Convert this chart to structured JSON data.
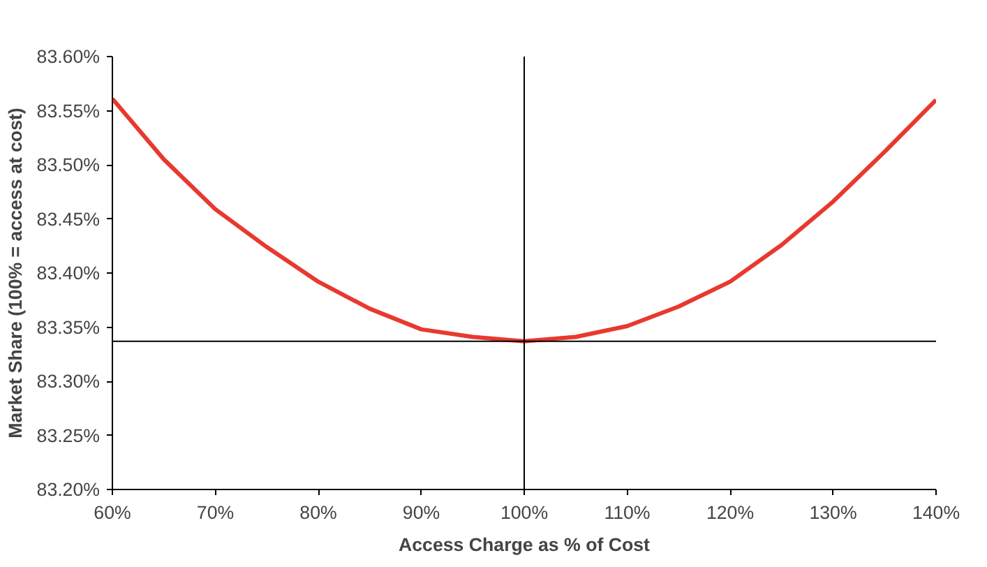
{
  "chart_data": {
    "type": "line",
    "xlabel": "Access Charge as % of Cost",
    "ylabel": "Market Share (100% = access at cost)",
    "x": [
      60,
      65,
      70,
      75,
      80,
      85,
      90,
      95,
      100,
      105,
      110,
      115,
      120,
      125,
      130,
      135,
      140
    ],
    "series": [
      {
        "color": "#e8392f",
        "values": [
          83.561,
          83.505,
          83.459,
          83.424,
          83.392,
          83.367,
          83.348,
          83.341,
          83.337,
          83.341,
          83.351,
          83.369,
          83.392,
          83.426,
          83.466,
          83.512,
          83.56
        ]
      }
    ],
    "xlim": [
      60,
      140
    ],
    "ylim": [
      83.2,
      83.6
    ],
    "xticks": [
      {
        "value": 60,
        "label": "60%"
      },
      {
        "value": 70,
        "label": "70%"
      },
      {
        "value": 80,
        "label": "80%"
      },
      {
        "value": 90,
        "label": "90%"
      },
      {
        "value": 100,
        "label": "100%"
      },
      {
        "value": 110,
        "label": "110%"
      },
      {
        "value": 120,
        "label": "120%"
      },
      {
        "value": 130,
        "label": "130%"
      },
      {
        "value": 140,
        "label": "140%"
      }
    ],
    "yticks": [
      {
        "value": 83.2,
        "label": "83.20%"
      },
      {
        "value": 83.25,
        "label": "83.25%"
      },
      {
        "value": 83.3,
        "label": "83.30%"
      },
      {
        "value": 83.35,
        "label": "83.35%"
      },
      {
        "value": 83.4,
        "label": "83.40%"
      },
      {
        "value": 83.45,
        "label": "83.45%"
      },
      {
        "value": 83.5,
        "label": "83.50%"
      },
      {
        "value": 83.55,
        "label": "83.55%"
      },
      {
        "value": 83.6,
        "label": "83.60%"
      }
    ],
    "ref_lines": [
      {
        "axis": "y",
        "value": 83.337,
        "color": "#000000"
      },
      {
        "axis": "x",
        "value": 100,
        "color": "#000000"
      }
    ],
    "grid": false,
    "marker": "none",
    "line_style": "solid"
  }
}
